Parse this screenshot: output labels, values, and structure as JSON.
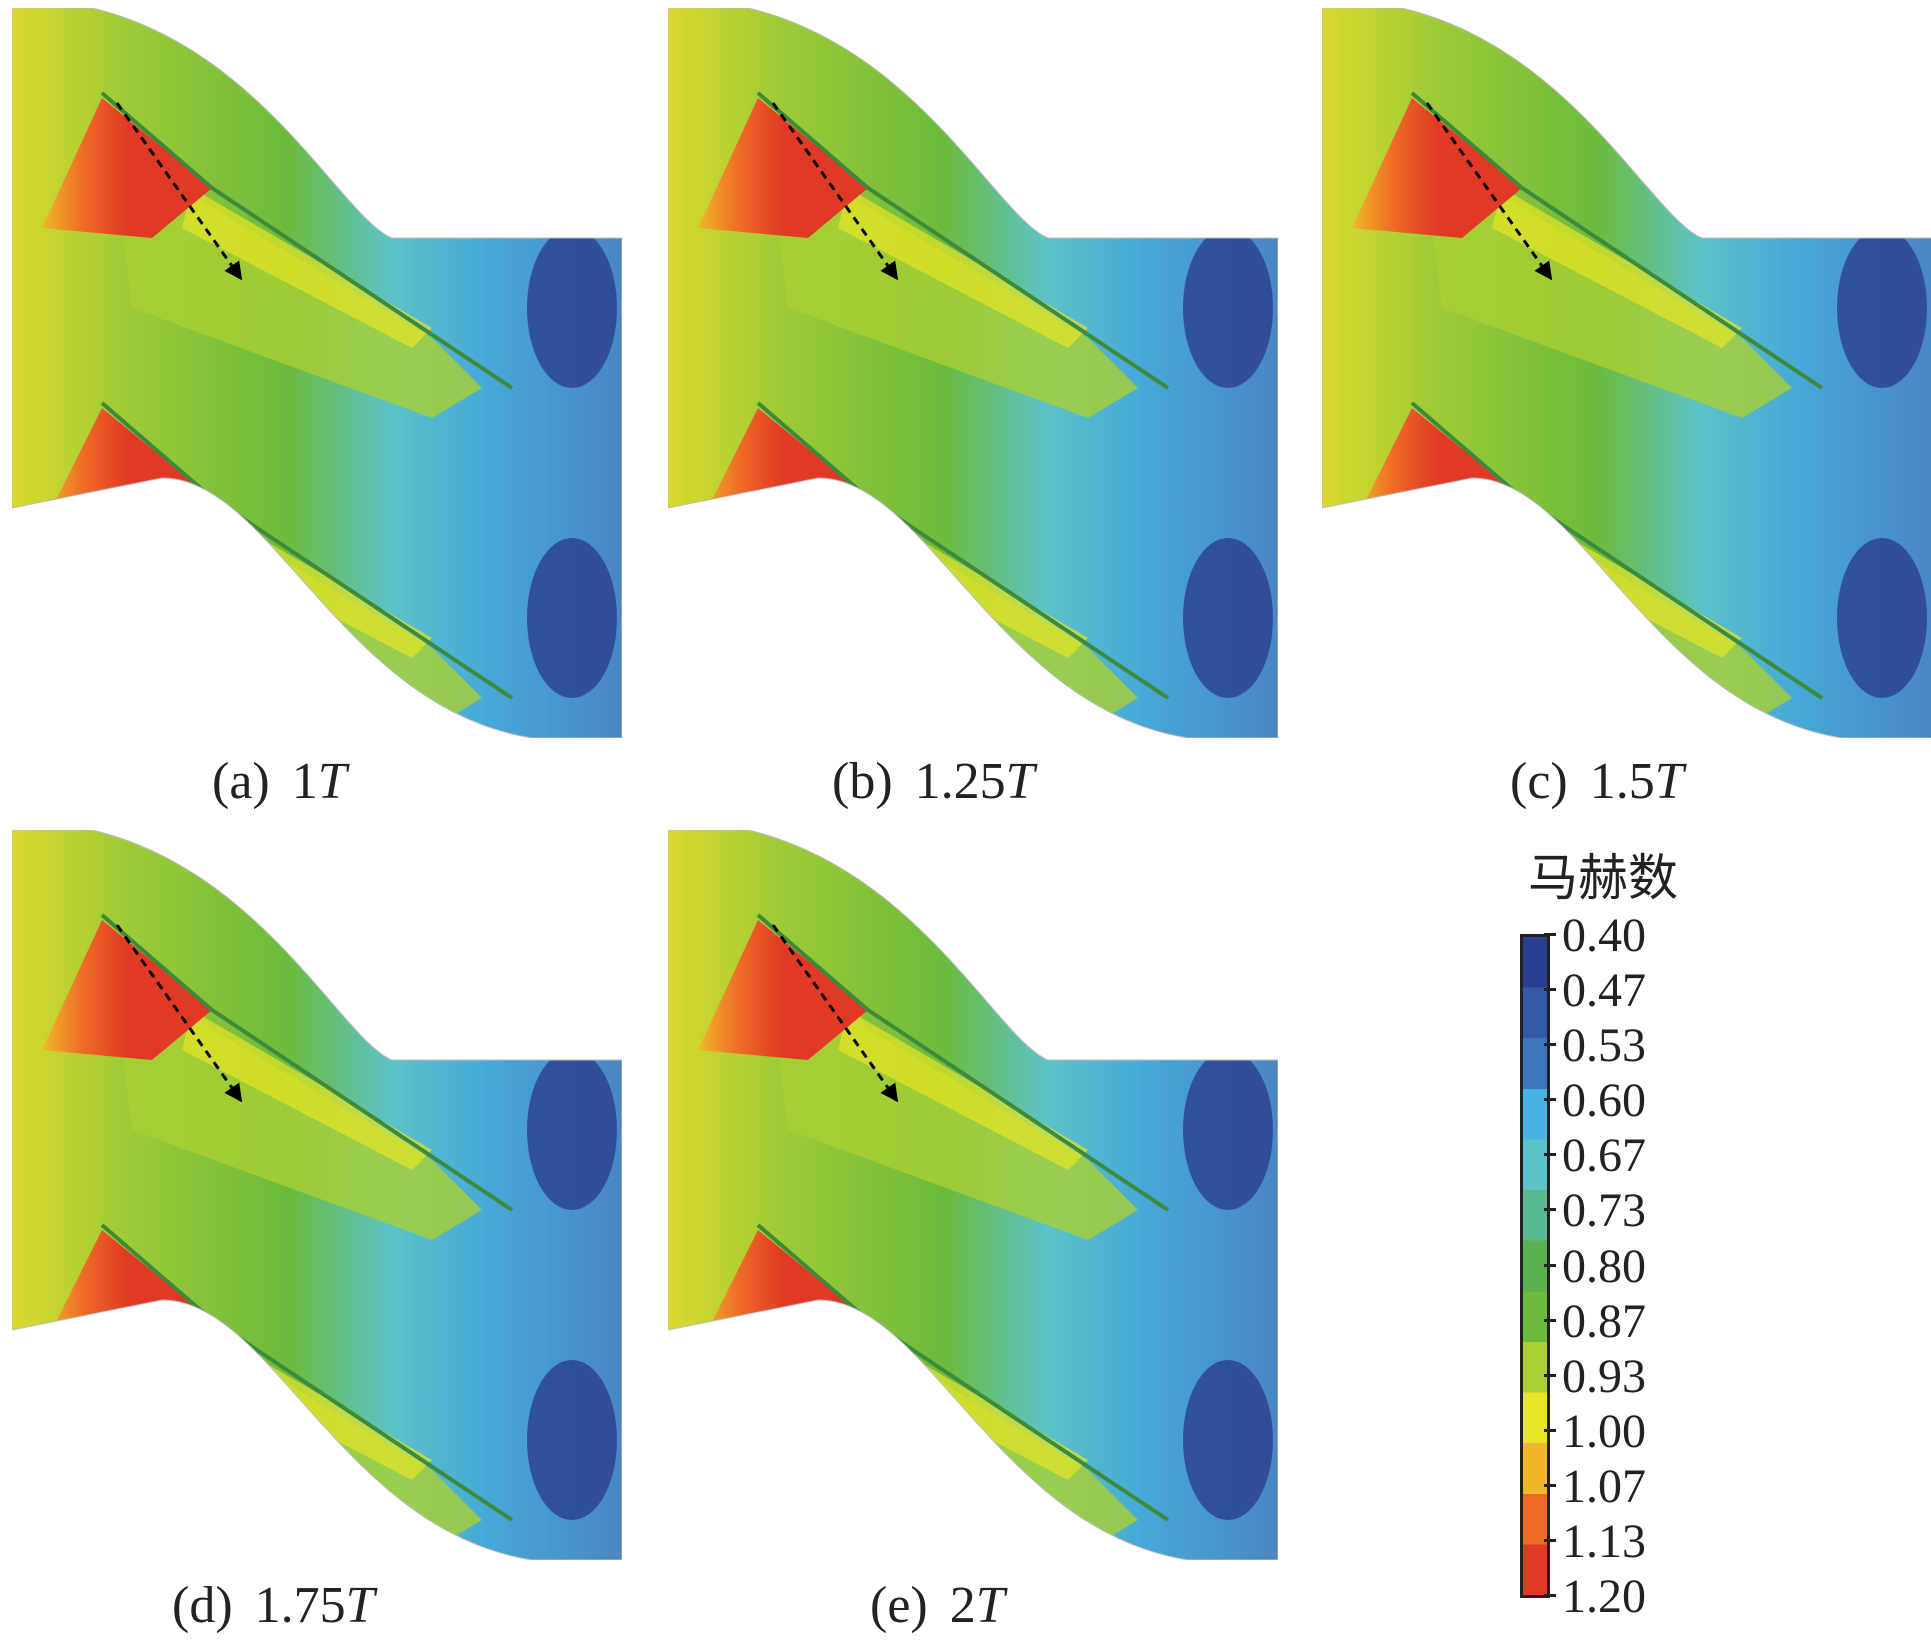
{
  "panels": [
    {
      "id": "a",
      "tag": "(a)",
      "value": "1",
      "unit": "T"
    },
    {
      "id": "b",
      "tag": "(b)",
      "value": "1.25",
      "unit": "T"
    },
    {
      "id": "c",
      "tag": "(c)",
      "value": "1.5",
      "unit": "T"
    },
    {
      "id": "d",
      "tag": "(d)",
      "value": "1.75",
      "unit": "T"
    },
    {
      "id": "e",
      "tag": "(e)",
      "value": "2",
      "unit": "T"
    }
  ],
  "legend": {
    "title": "马赫数",
    "ticks": [
      "0.40",
      "0.47",
      "0.53",
      "0.60",
      "0.67",
      "0.73",
      "0.80",
      "0.87",
      "0.93",
      "1.00",
      "1.07",
      "1.13",
      "1.20"
    ],
    "colors": [
      "#2a3f8f",
      "#3558a8",
      "#3d74bb",
      "#46b4e3",
      "#5cc3c8",
      "#5ab98f",
      "#58b04e",
      "#6cbb3c",
      "#a9cf33",
      "#e6e526",
      "#f1b72a",
      "#ee6a26",
      "#e03a26"
    ]
  }
}
